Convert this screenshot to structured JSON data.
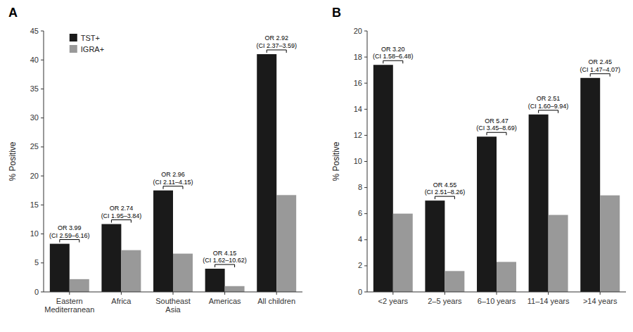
{
  "chart_data": [
    {
      "type": "bar",
      "title": "A",
      "categories": [
        "Eastern\nMediterranean",
        "Africa",
        "Southeast\nAsia",
        "Americas",
        "All children"
      ],
      "series": [
        {
          "name": "TST+",
          "color": "#1a1a1a",
          "values": [
            8.3,
            11.7,
            17.5,
            4.0,
            41.0
          ]
        },
        {
          "name": "IGRA+",
          "color": "#999999",
          "values": [
            2.2,
            7.2,
            6.6,
            1.0,
            16.7
          ]
        }
      ],
      "ylim": [
        0,
        45
      ],
      "yticks": [
        0,
        5,
        10,
        15,
        20,
        25,
        30,
        35,
        40,
        45
      ],
      "ylabel": "% Positive",
      "annotations": [
        "OR 3.99\n(CI 2.59–6.16)",
        "OR 2.74\n(CI 1.95–3.84)",
        "OR 2.96\n(CI 2.11–4.15)",
        "OR 4.15\n(CI 1.62–10.62)",
        "OR 2.92\n(CI 2.37–3.59)"
      ],
      "legend": "upper left"
    },
    {
      "type": "bar",
      "title": "B",
      "categories": [
        "<2 years",
        "2–5 years",
        "6–10 years",
        "11–14 years",
        ">14 years"
      ],
      "series": [
        {
          "name": "TST+",
          "color": "#1a1a1a",
          "values": [
            17.4,
            7.0,
            11.9,
            13.6,
            16.4
          ]
        },
        {
          "name": "IGRA+",
          "color": "#999999",
          "values": [
            6.0,
            1.6,
            2.3,
            5.9,
            7.4
          ]
        }
      ],
      "ylim": [
        0,
        20
      ],
      "yticks": [
        0,
        2,
        4,
        6,
        8,
        10,
        12,
        14,
        16,
        18,
        20
      ],
      "ylabel": "% Positive",
      "annotations": [
        "OR 3.20\n(CI 1.58–6.48)",
        "OR 4.55\n(CI 2.51–8.26)",
        "OR 5.47\n(CI 3.45–8.69)",
        "OR 2.51\n(CI 1.60–9.94)",
        "OR 2.45\n(CI 1.47–4.07)"
      ],
      "legend": false
    }
  ]
}
